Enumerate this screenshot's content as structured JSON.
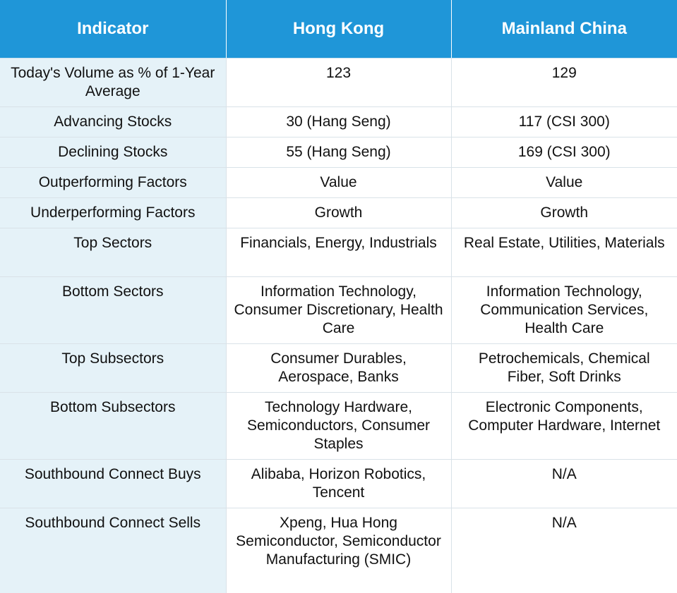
{
  "table": {
    "headers": [
      "Indicator",
      "Hong Kong",
      "Mainland China"
    ],
    "rows": [
      [
        "Today's Volume as % of 1-Year Average",
        "123",
        "129"
      ],
      [
        "Advancing Stocks",
        "30 (Hang Seng)",
        "117 (CSI 300)"
      ],
      [
        "Declining Stocks",
        "55 (Hang Seng)",
        "169 (CSI 300)"
      ],
      [
        "Outperforming Factors",
        "Value",
        "Value"
      ],
      [
        "Underperforming Factors",
        "Growth",
        "Growth"
      ],
      [
        "Top Sectors",
        "Financials, Energy, Industrials",
        "Real Estate, Utilities, Materials"
      ],
      [
        "Bottom Sectors",
        "Information Technology, Consumer Discretionary, Health Care",
        "Information Technology, Communication Services, Health Care"
      ],
      [
        "Top Subsectors",
        "Consumer Durables, Aerospace, Banks",
        "Petrochemicals, Chemical Fiber, Soft Drinks"
      ],
      [
        "Bottom Subsectors",
        "Technology Hardware, Semiconductors, Consumer Staples",
        "Electronic Components, Computer Hardware, Internet"
      ],
      [
        "Southbound Connect Buys",
        "Alibaba, Horizon Robotics, Tencent",
        "N/A"
      ],
      [
        "Southbound Connect Sells",
        "Xpeng, Hua Hong Semiconductor, Semiconductor Manufacturing (SMIC)",
        "N/A"
      ]
    ]
  },
  "colors": {
    "header_bg": "#1f96d8",
    "header_text": "#ffffff",
    "indicator_bg": "#e5f2f8",
    "grid": "#d9e2e8"
  }
}
